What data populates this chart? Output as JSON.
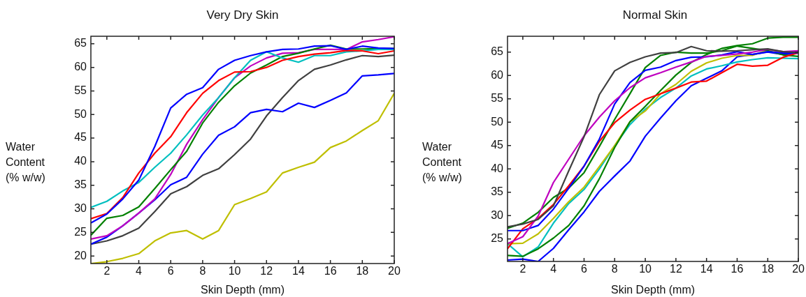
{
  "chart_data": [
    {
      "type": "line",
      "title": "Very Dry Skin",
      "xlabel": "Skin Depth (mm)",
      "ylabel": "Water Content (% w/w)",
      "x": [
        1,
        2,
        3,
        4,
        5,
        6,
        7,
        8,
        9,
        10,
        11,
        12,
        13,
        14,
        15,
        16,
        17,
        18,
        19,
        20
      ],
      "xlim": [
        1,
        20
      ],
      "xticks": [
        2,
        4,
        6,
        8,
        10,
        12,
        14,
        16,
        18,
        20
      ],
      "ylim": [
        18.4,
        66.6
      ],
      "yticks": [
        20,
        25,
        30,
        35,
        40,
        45,
        50,
        55,
        60,
        65
      ],
      "series": [
        {
          "color": "#0000ff",
          "values": [
            27.0,
            28.9,
            32.1,
            36.1,
            43.2,
            51.4,
            54.3,
            55.7,
            59.6,
            61.5,
            62.5,
            63.3,
            63.8,
            63.9,
            64.5,
            64.6,
            63.8,
            64.5,
            64.1,
            64.0
          ]
        },
        {
          "color": "#ff0000",
          "values": [
            27.9,
            29.0,
            32.4,
            37.6,
            41.8,
            45.3,
            50.4,
            54.5,
            57.2,
            59.0,
            59.1,
            60.0,
            61.5,
            62.3,
            62.8,
            63.1,
            63.6,
            63.5,
            62.9,
            63.5
          ]
        },
        {
          "color": "#00bfbf",
          "values": [
            30.3,
            31.6,
            33.8,
            35.6,
            38.8,
            41.8,
            45.7,
            49.9,
            53.6,
            57.8,
            61.5,
            63.3,
            62.0,
            61.1,
            62.5,
            62.5,
            63.3,
            63.5,
            63.8,
            63.8
          ]
        },
        {
          "color": "#008000",
          "values": [
            24.4,
            28.0,
            28.6,
            30.4,
            34.3,
            38.3,
            42.2,
            48.2,
            52.6,
            56.1,
            58.8,
            60.5,
            62.3,
            63.0,
            63.9,
            64.7,
            63.9,
            63.9,
            64.0,
            64.0
          ]
        },
        {
          "color": "#bf00bf",
          "values": [
            23.6,
            24.3,
            26.4,
            29.1,
            32.1,
            37.3,
            43.7,
            48.9,
            53.6,
            57.8,
            60.3,
            62.0,
            63.0,
            63.1,
            63.8,
            63.8,
            63.8,
            65.4,
            65.9,
            66.5
          ]
        },
        {
          "color": "#0000ff",
          "values": [
            22.5,
            24.0,
            26.4,
            29.1,
            31.9,
            35.1,
            36.7,
            41.6,
            45.6,
            47.4,
            50.4,
            51.1,
            50.6,
            52.4,
            51.5,
            53.0,
            54.6,
            58.2,
            58.4,
            58.7
          ]
        },
        {
          "color": "#404040",
          "values": [
            22.5,
            23.2,
            24.3,
            25.9,
            29.4,
            33.2,
            34.7,
            37.1,
            38.5,
            41.5,
            44.8,
            49.7,
            53.6,
            57.2,
            59.6,
            60.5,
            61.6,
            62.5,
            62.3,
            62.6
          ]
        },
        {
          "color": "#bfbf00",
          "values": [
            18.4,
            18.8,
            19.5,
            20.5,
            23.2,
            24.9,
            25.4,
            23.6,
            25.4,
            30.9,
            32.2,
            33.6,
            37.6,
            38.8,
            39.9,
            43.0,
            44.4,
            46.6,
            48.7,
            54.5
          ]
        }
      ]
    },
    {
      "type": "line",
      "title": "Normal Skin",
      "xlabel": "Skin Depth (mm)",
      "ylabel": "Water Content (% w/w)",
      "x": [
        1,
        2,
        3,
        4,
        5,
        6,
        7,
        8,
        9,
        10,
        11,
        12,
        13,
        14,
        15,
        16,
        17,
        18,
        19,
        20
      ],
      "xlim": [
        1,
        20
      ],
      "xticks": [
        2,
        4,
        6,
        8,
        10,
        12,
        14,
        16,
        18,
        20
      ],
      "ylim": [
        20.2,
        68.4
      ],
      "yticks": [
        25,
        30,
        35,
        40,
        45,
        50,
        55,
        60,
        65
      ],
      "series": [
        {
          "color": "#404040",
          "values": [
            27.6,
            28.2,
            29.2,
            32.1,
            39.6,
            46.9,
            55.9,
            61.0,
            62.8,
            64.0,
            64.8,
            64.9,
            66.2,
            65.3,
            65.2,
            65.3,
            65.5,
            65.7,
            65.1,
            64.9
          ]
        },
        {
          "color": "#bf00bf",
          "values": [
            24.0,
            25.5,
            29.9,
            37.1,
            42.1,
            47.1,
            51.1,
            54.6,
            57.4,
            59.5,
            60.6,
            61.8,
            62.9,
            64.1,
            64.3,
            64.6,
            65.0,
            65.6,
            65.1,
            65.3
          ]
        },
        {
          "color": "#0000ff",
          "values": [
            26.8,
            26.8,
            27.9,
            31.4,
            35.9,
            40.6,
            46.4,
            53.9,
            58.5,
            61.1,
            61.8,
            63.2,
            63.9,
            64.0,
            64.4,
            65.1,
            64.5,
            65.1,
            64.8,
            64.9
          ]
        },
        {
          "color": "#ff0000",
          "values": [
            22.9,
            27.2,
            29.4,
            32.4,
            36.4,
            40.6,
            45.9,
            49.9,
            52.6,
            54.9,
            56.1,
            57.3,
            58.6,
            58.8,
            60.6,
            62.4,
            62.0,
            62.2,
            63.9,
            64.9
          ]
        },
        {
          "color": "#008000",
          "values": [
            27.3,
            28.4,
            30.7,
            33.9,
            35.9,
            39.2,
            44.8,
            50.6,
            56.1,
            61.7,
            64.3,
            65.0,
            64.8,
            64.8,
            65.3,
            66.3,
            65.8,
            65.3,
            64.4,
            64.1
          ]
        },
        {
          "color": "#008000",
          "values": [
            21.5,
            21.3,
            22.9,
            25.2,
            27.9,
            32.1,
            37.9,
            44.6,
            50.1,
            53.4,
            56.8,
            60.1,
            62.8,
            64.5,
            65.8,
            66.4,
            66.8,
            68.0,
            68.2,
            68.2
          ]
        },
        {
          "color": "#bfbf00",
          "values": [
            24.0,
            24.1,
            26.1,
            29.4,
            33.0,
            36.1,
            40.5,
            45.0,
            50.1,
            52.4,
            56.1,
            58.1,
            60.9,
            62.7,
            63.7,
            64.3,
            64.3,
            65.5,
            65.0,
            65.0
          ]
        },
        {
          "color": "#00bfbf",
          "values": [
            24.0,
            21.2,
            23.3,
            28.4,
            32.6,
            35.6,
            40.0,
            45.0,
            49.5,
            52.8,
            55.3,
            57.3,
            59.9,
            61.4,
            62.1,
            62.9,
            63.4,
            63.8,
            63.7,
            63.6
          ]
        },
        {
          "color": "#0000ff",
          "values": [
            20.5,
            20.7,
            20.2,
            23.0,
            27.0,
            30.8,
            35.2,
            38.5,
            41.7,
            47.0,
            50.9,
            54.6,
            57.8,
            59.4,
            61.0,
            64.0,
            64.5,
            65.0,
            64.5,
            64.8
          ]
        }
      ]
    }
  ]
}
